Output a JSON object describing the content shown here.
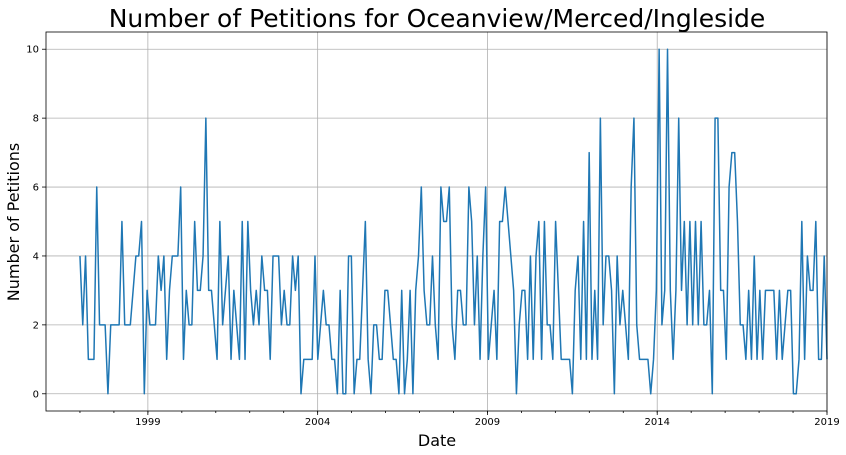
{
  "chart_data": {
    "type": "line",
    "title": "Number of Petitions for Oceanview/Merced/Ingleside",
    "xlabel": "Date",
    "ylabel": "Number of Petitions",
    "x_start": "1997-01",
    "x_end": "2019-01",
    "x_ticks": [
      "1999",
      "2004",
      "2009",
      "2014",
      "2019"
    ],
    "y_ticks": [
      "0",
      "2",
      "4",
      "6",
      "8",
      "10"
    ],
    "xlim": [
      "1996-01",
      "2019-01"
    ],
    "ylim": [
      -0.5,
      10.5
    ],
    "grid": true,
    "color": "#1f77b4",
    "series": [
      {
        "values": [
          4,
          2,
          4,
          1,
          1,
          1,
          6,
          2,
          2,
          2,
          0,
          2,
          2,
          2,
          2,
          5,
          2,
          2,
          2,
          3,
          4,
          4,
          5,
          0,
          3,
          2,
          2,
          2,
          4,
          3,
          4,
          1,
          3,
          4,
          4,
          4,
          6,
          1,
          3,
          2,
          2,
          5,
          3,
          3,
          4,
          8,
          3,
          3,
          2,
          1,
          5,
          2,
          3,
          4,
          1,
          3,
          2,
          1,
          5,
          1,
          5,
          3,
          2,
          3,
          2,
          4,
          3,
          3,
          1,
          4,
          4,
          4,
          2,
          3,
          2,
          2,
          4,
          3,
          4,
          0,
          1,
          1,
          1,
          1,
          4,
          1,
          2,
          3,
          2,
          2,
          1,
          1,
          0,
          3,
          0,
          0,
          4,
          4,
          0,
          1,
          1,
          3,
          5,
          1,
          0,
          2,
          2,
          1,
          1,
          3,
          3,
          2,
          1,
          1,
          0,
          3,
          0,
          1,
          3,
          0,
          3,
          4,
          6,
          3,
          2,
          2,
          4,
          2,
          1,
          6,
          5,
          5,
          6,
          2,
          1,
          3,
          3,
          2,
          2,
          6,
          5,
          2,
          4,
          1,
          4,
          6,
          1,
          2,
          3,
          1,
          5,
          5,
          6,
          5,
          4,
          3,
          0,
          2,
          3,
          3,
          1,
          4,
          1,
          4,
          5,
          1,
          5,
          2,
          2,
          1,
          5,
          3,
          1,
          1,
          1,
          1,
          0,
          3,
          4,
          1,
          5,
          1,
          7,
          1,
          3,
          1,
          8,
          2,
          4,
          4,
          3,
          0,
          4,
          2,
          3,
          2,
          1,
          6,
          8,
          2,
          1,
          1,
          1,
          1,
          0,
          1,
          3,
          10,
          2,
          3,
          10,
          3,
          1,
          3,
          8,
          3,
          5,
          2,
          5,
          2,
          5,
          2,
          5,
          2,
          2,
          3,
          0,
          8,
          8,
          3,
          3,
          1,
          6,
          7,
          7,
          5,
          2,
          2,
          1,
          3,
          1,
          4,
          1,
          3,
          1,
          3,
          3,
          3,
          3,
          1,
          3,
          1,
          2,
          3,
          3,
          0,
          0,
          1,
          5,
          1,
          4,
          3,
          3,
          5,
          1,
          1,
          4,
          1
        ]
      }
    ]
  }
}
